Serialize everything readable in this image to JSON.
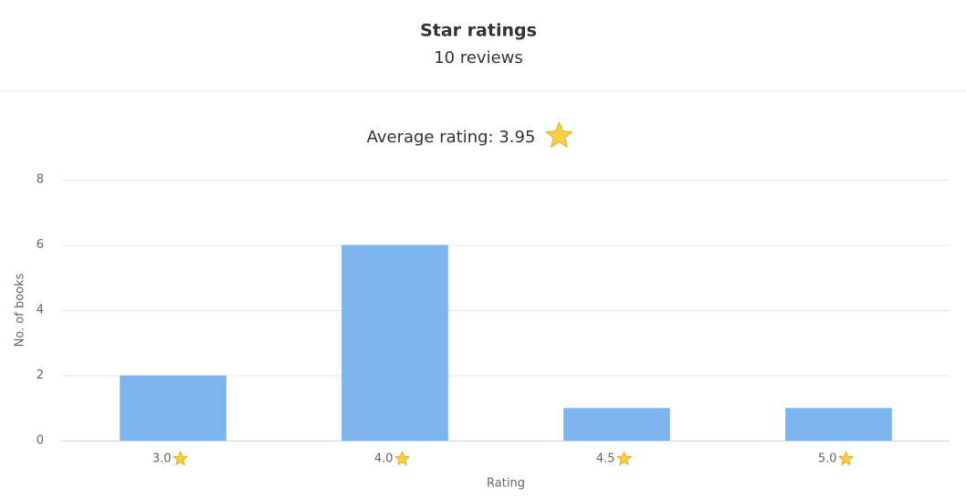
{
  "header": {
    "title": "Star ratings",
    "subtitle": "10 reviews"
  },
  "chart_data": {
    "type": "bar",
    "title": "Average rating: 3.95",
    "categories": [
      "3.0",
      "4.0",
      "4.5",
      "5.0"
    ],
    "values": [
      2,
      6,
      1,
      1
    ],
    "color": "#7cb5ec",
    "x_label": "Rating",
    "y_label": "No. of books",
    "ylim": [
      0,
      8
    ],
    "yticks": [
      0,
      2,
      4,
      6,
      8
    ],
    "grid": true
  }
}
